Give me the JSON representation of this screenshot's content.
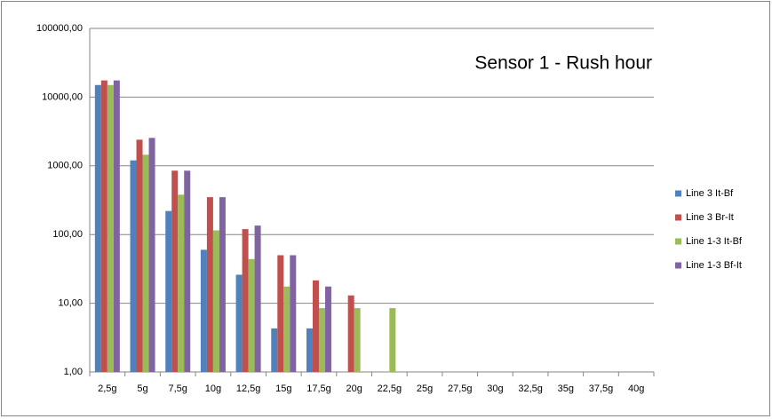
{
  "chart_data": {
    "type": "bar",
    "title": "Sensor 1 - Rush hour",
    "categories": [
      "2,5g",
      "5g",
      "7,5g",
      "10g",
      "12,5g",
      "15g",
      "17,5g",
      "20g",
      "22,5g",
      "25g",
      "27,5g",
      "30g",
      "32,5g",
      "35g",
      "37,5g",
      "40g"
    ],
    "series": [
      {
        "name": "Line 3 It-Bf",
        "color": "#4f81bd",
        "values": [
          15000,
          1200,
          220,
          60,
          26,
          4.3,
          4.3,
          null,
          null,
          null,
          null,
          null,
          null,
          null,
          null,
          null
        ]
      },
      {
        "name": "Line 3 Br-It",
        "color": "#c0504d",
        "values": [
          17500,
          2400,
          850,
          350,
          120,
          50,
          21.5,
          13,
          null,
          null,
          null,
          null,
          null,
          null,
          null,
          null
        ]
      },
      {
        "name": "Line 1-3 It-Bf",
        "color": "#9bbb59",
        "values": [
          15000,
          1450,
          380,
          115,
          44,
          17.5,
          8.5,
          8.5,
          8.5,
          null,
          null,
          null,
          null,
          null,
          null,
          null
        ]
      },
      {
        "name": "Line 1-3 Bf-It",
        "color": "#8064a2",
        "values": [
          17500,
          2550,
          850,
          350,
          135,
          50,
          17.5,
          null,
          null,
          null,
          null,
          null,
          null,
          null,
          null,
          null
        ]
      }
    ],
    "log_scale": true,
    "ylim": [
      1,
      100000
    ],
    "yticks": [
      {
        "value": 1,
        "label": "1,00"
      },
      {
        "value": 10,
        "label": "10,00"
      },
      {
        "value": 100,
        "label": "100,00"
      },
      {
        "value": 1000,
        "label": "1000,00"
      },
      {
        "value": 10000,
        "label": "10000,00"
      },
      {
        "value": 100000,
        "label": "100000,00"
      }
    ],
    "grid": true,
    "legend": "right"
  }
}
